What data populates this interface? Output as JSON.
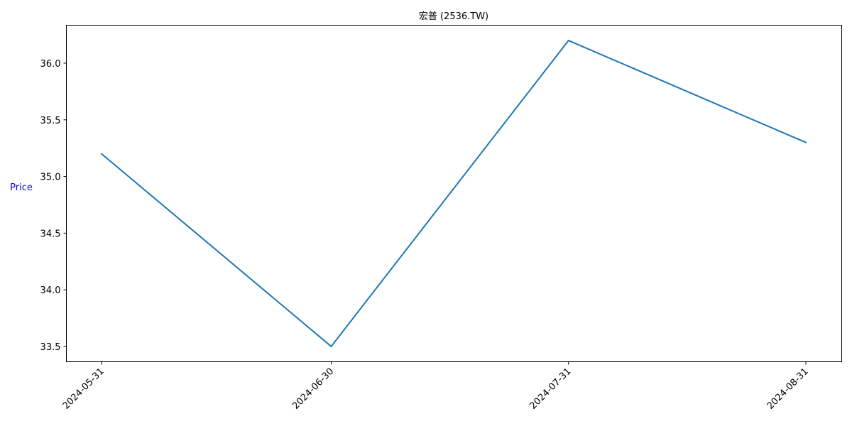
{
  "chart_data": {
    "type": "line",
    "title": "宏普 (2536.TW)",
    "xlabel": "",
    "ylabel": "Price",
    "ylabel_color": "#0000ff",
    "line_color": "#1f77b4",
    "grid": false,
    "x": [
      "2024-05-31",
      "2024-06-30",
      "2024-07-31",
      "2024-08-31"
    ],
    "series": [
      {
        "values": [
          35.2,
          33.5,
          36.2,
          35.3
        ]
      }
    ],
    "yticks": [
      33.5,
      34.0,
      34.5,
      35.0,
      35.5,
      36.0
    ],
    "ytick_labels": [
      "33.5",
      "34.0",
      "34.5",
      "35.0",
      "35.5",
      "36.0"
    ],
    "ylim": [
      33.365,
      36.335
    ]
  }
}
